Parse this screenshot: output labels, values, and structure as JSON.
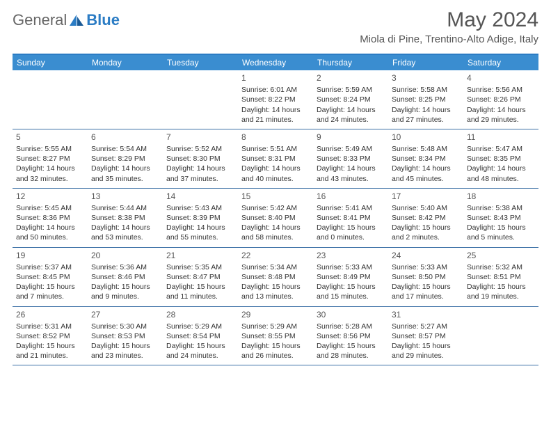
{
  "logo": {
    "text1": "General",
    "text2": "Blue"
  },
  "title": "May 2024",
  "location": "Miola di Pine, Trentino-Alto Adige, Italy",
  "colors": {
    "header_bg": "#3a8dd0",
    "header_border": "#2b7cc4",
    "row_border": "#3a6fa5",
    "text": "#333333",
    "title_text": "#555555",
    "logo_gray": "#666666",
    "logo_blue": "#2b7cc4",
    "background": "#ffffff"
  },
  "fonts": {
    "title_size": 30,
    "location_size": 15,
    "weekday_size": 12,
    "daynum_size": 12,
    "cell_size": 10.5
  },
  "weekdays": [
    "Sunday",
    "Monday",
    "Tuesday",
    "Wednesday",
    "Thursday",
    "Friday",
    "Saturday"
  ],
  "weeks": [
    [
      {
        "n": "",
        "sr": "",
        "ss": "",
        "dl": ""
      },
      {
        "n": "",
        "sr": "",
        "ss": "",
        "dl": ""
      },
      {
        "n": "",
        "sr": "",
        "ss": "",
        "dl": ""
      },
      {
        "n": "1",
        "sr": "Sunrise: 6:01 AM",
        "ss": "Sunset: 8:22 PM",
        "dl": "Daylight: 14 hours and 21 minutes."
      },
      {
        "n": "2",
        "sr": "Sunrise: 5:59 AM",
        "ss": "Sunset: 8:24 PM",
        "dl": "Daylight: 14 hours and 24 minutes."
      },
      {
        "n": "3",
        "sr": "Sunrise: 5:58 AM",
        "ss": "Sunset: 8:25 PM",
        "dl": "Daylight: 14 hours and 27 minutes."
      },
      {
        "n": "4",
        "sr": "Sunrise: 5:56 AM",
        "ss": "Sunset: 8:26 PM",
        "dl": "Daylight: 14 hours and 29 minutes."
      }
    ],
    [
      {
        "n": "5",
        "sr": "Sunrise: 5:55 AM",
        "ss": "Sunset: 8:27 PM",
        "dl": "Daylight: 14 hours and 32 minutes."
      },
      {
        "n": "6",
        "sr": "Sunrise: 5:54 AM",
        "ss": "Sunset: 8:29 PM",
        "dl": "Daylight: 14 hours and 35 minutes."
      },
      {
        "n": "7",
        "sr": "Sunrise: 5:52 AM",
        "ss": "Sunset: 8:30 PM",
        "dl": "Daylight: 14 hours and 37 minutes."
      },
      {
        "n": "8",
        "sr": "Sunrise: 5:51 AM",
        "ss": "Sunset: 8:31 PM",
        "dl": "Daylight: 14 hours and 40 minutes."
      },
      {
        "n": "9",
        "sr": "Sunrise: 5:49 AM",
        "ss": "Sunset: 8:33 PM",
        "dl": "Daylight: 14 hours and 43 minutes."
      },
      {
        "n": "10",
        "sr": "Sunrise: 5:48 AM",
        "ss": "Sunset: 8:34 PM",
        "dl": "Daylight: 14 hours and 45 minutes."
      },
      {
        "n": "11",
        "sr": "Sunrise: 5:47 AM",
        "ss": "Sunset: 8:35 PM",
        "dl": "Daylight: 14 hours and 48 minutes."
      }
    ],
    [
      {
        "n": "12",
        "sr": "Sunrise: 5:45 AM",
        "ss": "Sunset: 8:36 PM",
        "dl": "Daylight: 14 hours and 50 minutes."
      },
      {
        "n": "13",
        "sr": "Sunrise: 5:44 AM",
        "ss": "Sunset: 8:38 PM",
        "dl": "Daylight: 14 hours and 53 minutes."
      },
      {
        "n": "14",
        "sr": "Sunrise: 5:43 AM",
        "ss": "Sunset: 8:39 PM",
        "dl": "Daylight: 14 hours and 55 minutes."
      },
      {
        "n": "15",
        "sr": "Sunrise: 5:42 AM",
        "ss": "Sunset: 8:40 PM",
        "dl": "Daylight: 14 hours and 58 minutes."
      },
      {
        "n": "16",
        "sr": "Sunrise: 5:41 AM",
        "ss": "Sunset: 8:41 PM",
        "dl": "Daylight: 15 hours and 0 minutes."
      },
      {
        "n": "17",
        "sr": "Sunrise: 5:40 AM",
        "ss": "Sunset: 8:42 PM",
        "dl": "Daylight: 15 hours and 2 minutes."
      },
      {
        "n": "18",
        "sr": "Sunrise: 5:38 AM",
        "ss": "Sunset: 8:43 PM",
        "dl": "Daylight: 15 hours and 5 minutes."
      }
    ],
    [
      {
        "n": "19",
        "sr": "Sunrise: 5:37 AM",
        "ss": "Sunset: 8:45 PM",
        "dl": "Daylight: 15 hours and 7 minutes."
      },
      {
        "n": "20",
        "sr": "Sunrise: 5:36 AM",
        "ss": "Sunset: 8:46 PM",
        "dl": "Daylight: 15 hours and 9 minutes."
      },
      {
        "n": "21",
        "sr": "Sunrise: 5:35 AM",
        "ss": "Sunset: 8:47 PM",
        "dl": "Daylight: 15 hours and 11 minutes."
      },
      {
        "n": "22",
        "sr": "Sunrise: 5:34 AM",
        "ss": "Sunset: 8:48 PM",
        "dl": "Daylight: 15 hours and 13 minutes."
      },
      {
        "n": "23",
        "sr": "Sunrise: 5:33 AM",
        "ss": "Sunset: 8:49 PM",
        "dl": "Daylight: 15 hours and 15 minutes."
      },
      {
        "n": "24",
        "sr": "Sunrise: 5:33 AM",
        "ss": "Sunset: 8:50 PM",
        "dl": "Daylight: 15 hours and 17 minutes."
      },
      {
        "n": "25",
        "sr": "Sunrise: 5:32 AM",
        "ss": "Sunset: 8:51 PM",
        "dl": "Daylight: 15 hours and 19 minutes."
      }
    ],
    [
      {
        "n": "26",
        "sr": "Sunrise: 5:31 AM",
        "ss": "Sunset: 8:52 PM",
        "dl": "Daylight: 15 hours and 21 minutes."
      },
      {
        "n": "27",
        "sr": "Sunrise: 5:30 AM",
        "ss": "Sunset: 8:53 PM",
        "dl": "Daylight: 15 hours and 23 minutes."
      },
      {
        "n": "28",
        "sr": "Sunrise: 5:29 AM",
        "ss": "Sunset: 8:54 PM",
        "dl": "Daylight: 15 hours and 24 minutes."
      },
      {
        "n": "29",
        "sr": "Sunrise: 5:29 AM",
        "ss": "Sunset: 8:55 PM",
        "dl": "Daylight: 15 hours and 26 minutes."
      },
      {
        "n": "30",
        "sr": "Sunrise: 5:28 AM",
        "ss": "Sunset: 8:56 PM",
        "dl": "Daylight: 15 hours and 28 minutes."
      },
      {
        "n": "31",
        "sr": "Sunrise: 5:27 AM",
        "ss": "Sunset: 8:57 PM",
        "dl": "Daylight: 15 hours and 29 minutes."
      },
      {
        "n": "",
        "sr": "",
        "ss": "",
        "dl": ""
      }
    ]
  ]
}
